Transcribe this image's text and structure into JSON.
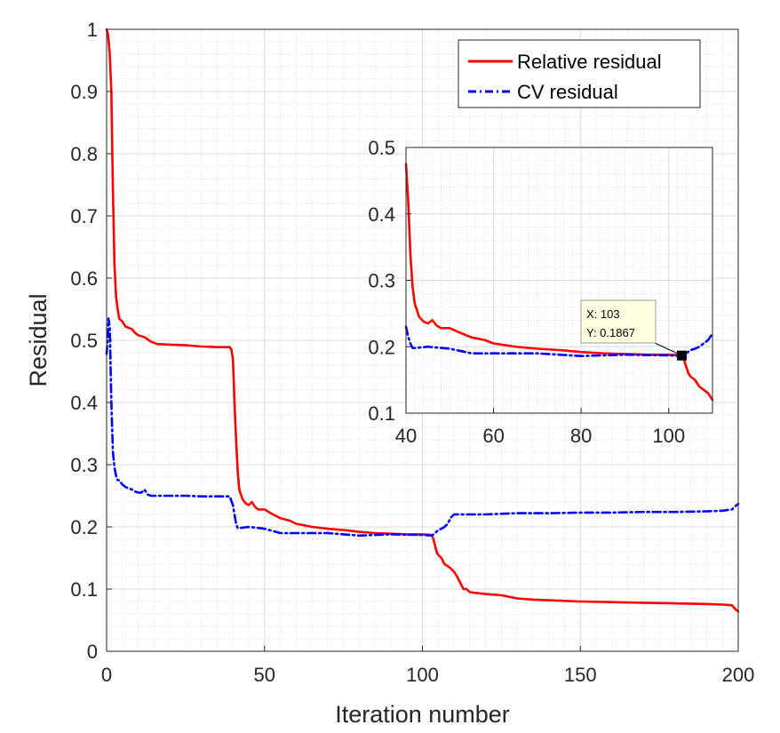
{
  "chart_data": [
    {
      "type": "line",
      "name": "main",
      "xlabel": "Iteration number",
      "ylabel": "Residual",
      "xlim": [
        0,
        200
      ],
      "ylim": [
        0,
        1
      ],
      "xticks": [
        0,
        50,
        100,
        150,
        200
      ],
      "yticks": [
        0,
        0.1,
        0.2,
        0.3,
        0.4,
        0.5,
        0.6,
        0.7,
        0.8,
        0.9,
        1
      ],
      "ytick_labels": [
        "0",
        "0.1",
        "0.2",
        "0.3",
        "0.4",
        "0.5",
        "0.6",
        "0.7",
        "0.8",
        "0.9",
        "1"
      ],
      "grid": true,
      "minor_grid": true,
      "legend": "top-right",
      "series": [
        {
          "name": "Relative residual",
          "color": "#ff0000",
          "style": "solid",
          "x": [
            0,
            0.5,
            1,
            1.5,
            2,
            2.5,
            3,
            3.5,
            4,
            5,
            6,
            7,
            8,
            9,
            10,
            12,
            14,
            16,
            20,
            25,
            30,
            35,
            38,
            39,
            39.5,
            40,
            40.5,
            41,
            41.5,
            42,
            43,
            44,
            45,
            46,
            47,
            48,
            50,
            52,
            55,
            58,
            60,
            65,
            70,
            75,
            80,
            85,
            90,
            95,
            100,
            102,
            103,
            103.5,
            104,
            104.5,
            105,
            106,
            107,
            108,
            109,
            110,
            111,
            112,
            113,
            114,
            115,
            120,
            125,
            130,
            135,
            140,
            150,
            160,
            170,
            180,
            190,
            195,
            198,
            199,
            200
          ],
          "values": [
            1,
            0.99,
            0.96,
            0.9,
            0.74,
            0.62,
            0.57,
            0.55,
            0.535,
            0.53,
            0.522,
            0.52,
            0.518,
            0.512,
            0.508,
            0.505,
            0.498,
            0.494,
            0.493,
            0.492,
            0.49,
            0.489,
            0.489,
            0.489,
            0.485,
            0.47,
            0.4,
            0.34,
            0.29,
            0.26,
            0.245,
            0.238,
            0.235,
            0.24,
            0.232,
            0.228,
            0.228,
            0.222,
            0.214,
            0.21,
            0.205,
            0.2,
            0.197,
            0.195,
            0.192,
            0.19,
            0.189,
            0.188,
            0.188,
            0.1875,
            0.1867,
            0.18,
            0.17,
            0.16,
            0.155,
            0.15,
            0.14,
            0.137,
            0.133,
            0.128,
            0.12,
            0.11,
            0.1,
            0.1,
            0.095,
            0.092,
            0.09,
            0.085,
            0.083,
            0.082,
            0.08,
            0.079,
            0.078,
            0.077,
            0.076,
            0.075,
            0.074,
            0.068,
            0.064
          ]
        },
        {
          "name": "CV residual",
          "color": "#0000ff",
          "style": "dashdot",
          "x": [
            0,
            0.3,
            0.6,
            1,
            1.5,
            2,
            2.5,
            3,
            3.5,
            4,
            5,
            6,
            7,
            8,
            9,
            10,
            11,
            12,
            13,
            14,
            15,
            20,
            25,
            30,
            35,
            39,
            40,
            40.5,
            41,
            41.5,
            42,
            45,
            50,
            55,
            60,
            70,
            80,
            90,
            100,
            103,
            104,
            105,
            106,
            107,
            108,
            109,
            110,
            120,
            130,
            140,
            150,
            160,
            170,
            180,
            190,
            195,
            198,
            199,
            200
          ],
          "values": [
            0.478,
            0.5,
            0.535,
            0.52,
            0.4,
            0.32,
            0.295,
            0.282,
            0.275,
            0.275,
            0.268,
            0.264,
            0.262,
            0.26,
            0.257,
            0.255,
            0.255,
            0.26,
            0.252,
            0.25,
            0.25,
            0.25,
            0.25,
            0.249,
            0.249,
            0.249,
            0.235,
            0.22,
            0.205,
            0.198,
            0.198,
            0.2,
            0.197,
            0.19,
            0.19,
            0.19,
            0.186,
            0.188,
            0.187,
            0.186,
            0.19,
            0.195,
            0.197,
            0.2,
            0.205,
            0.215,
            0.22,
            0.22,
            0.222,
            0.222,
            0.223,
            0.223,
            0.224,
            0.224,
            0.225,
            0.226,
            0.228,
            0.233,
            0.237
          ]
        }
      ]
    },
    {
      "type": "line",
      "name": "inset",
      "xlim": [
        40,
        110
      ],
      "ylim": [
        0.1,
        0.5
      ],
      "xticks": [
        40,
        60,
        80,
        100
      ],
      "yticks": [
        0.1,
        0.2,
        0.3,
        0.4,
        0.5
      ],
      "ytick_labels": [
        "0.1",
        "0.2",
        "0.3",
        "0.4",
        "0.5"
      ],
      "grid": true,
      "minor_grid": true,
      "series": [
        {
          "name": "Relative residual",
          "color": "#ff0000",
          "style": "solid",
          "x": [
            40,
            40.5,
            41,
            41.5,
            42,
            43,
            44,
            45,
            46,
            47,
            48,
            50,
            52,
            55,
            58,
            60,
            65,
            70,
            75,
            80,
            85,
            90,
            95,
            100,
            102,
            103,
            103.5,
            104,
            104.5,
            105,
            106,
            107,
            108,
            109,
            110
          ],
          "values": [
            0.475,
            0.42,
            0.34,
            0.29,
            0.265,
            0.245,
            0.238,
            0.235,
            0.24,
            0.232,
            0.228,
            0.228,
            0.222,
            0.214,
            0.21,
            0.205,
            0.2,
            0.197,
            0.195,
            0.192,
            0.19,
            0.189,
            0.188,
            0.188,
            0.1875,
            0.1867,
            0.18,
            0.17,
            0.16,
            0.155,
            0.15,
            0.14,
            0.135,
            0.13,
            0.12
          ]
        },
        {
          "name": "CV residual",
          "color": "#0000ff",
          "style": "dashdot",
          "x": [
            40,
            40.5,
            41,
            41.5,
            42,
            45,
            50,
            55,
            60,
            70,
            80,
            90,
            100,
            103,
            104,
            105,
            106,
            107,
            108,
            109,
            110
          ],
          "values": [
            0.23,
            0.215,
            0.205,
            0.198,
            0.198,
            0.2,
            0.197,
            0.19,
            0.19,
            0.19,
            0.186,
            0.188,
            0.187,
            0.186,
            0.19,
            0.195,
            0.197,
            0.2,
            0.205,
            0.21,
            0.22
          ]
        }
      ],
      "annotation": {
        "x": 103,
        "y": 0.1867,
        "lines": [
          "X: 103",
          "Y: 0.1867"
        ]
      }
    }
  ]
}
